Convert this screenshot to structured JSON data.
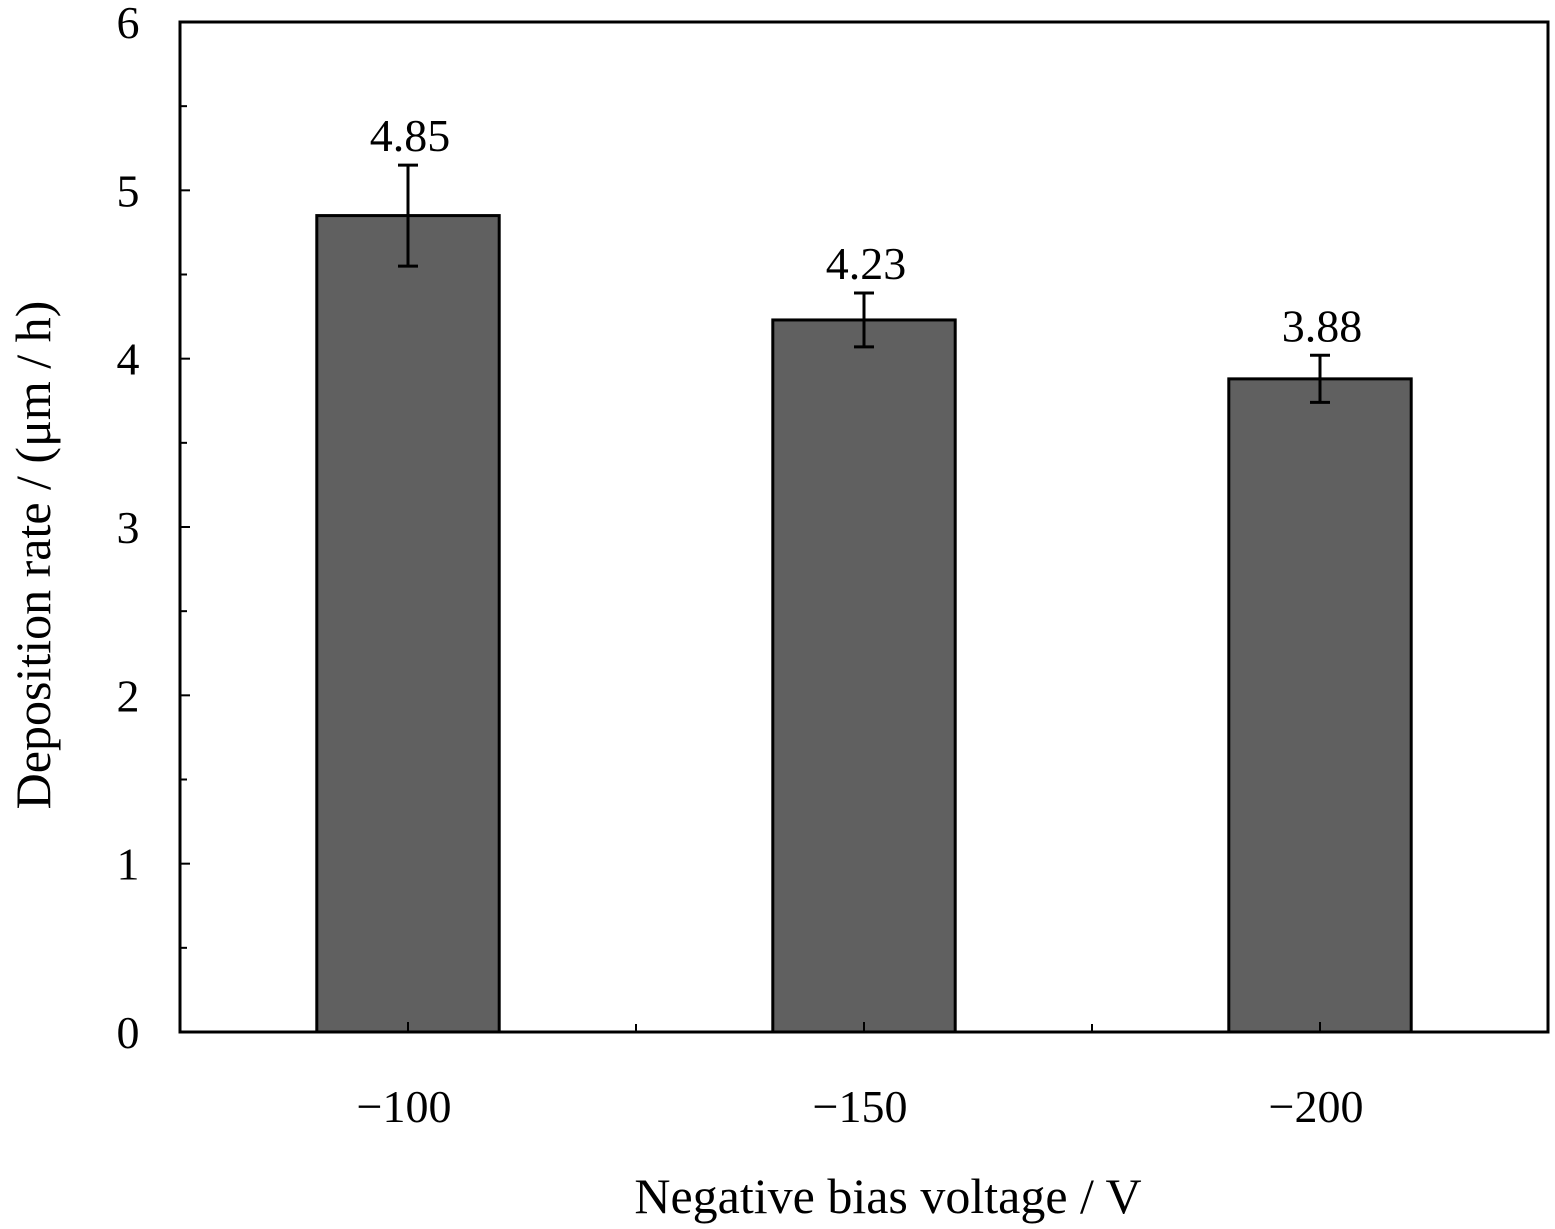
{
  "chart_data": {
    "type": "bar",
    "title": "",
    "xlabel": "Negative bias voltage / V",
    "ylabel": "Deposition rate / (μm / h)",
    "categories": [
      "−100",
      "−150",
      "−200"
    ],
    "values": [
      4.85,
      4.23,
      3.88
    ],
    "value_labels": [
      "4.85",
      "4.23",
      "3.88"
    ],
    "error_plus": [
      0.3,
      0.16,
      0.14
    ],
    "error_minus": [
      0.3,
      0.16,
      0.14
    ],
    "ylim": [
      0,
      6
    ],
    "yticks": [
      0,
      1,
      2,
      3,
      4,
      5,
      6
    ],
    "ytick_labels": [
      "0",
      "1",
      "2",
      "3",
      "4",
      "5",
      "6"
    ],
    "y_minor_step": 0.5,
    "bar_color": "#606060",
    "grid": false,
    "legend": "none"
  }
}
